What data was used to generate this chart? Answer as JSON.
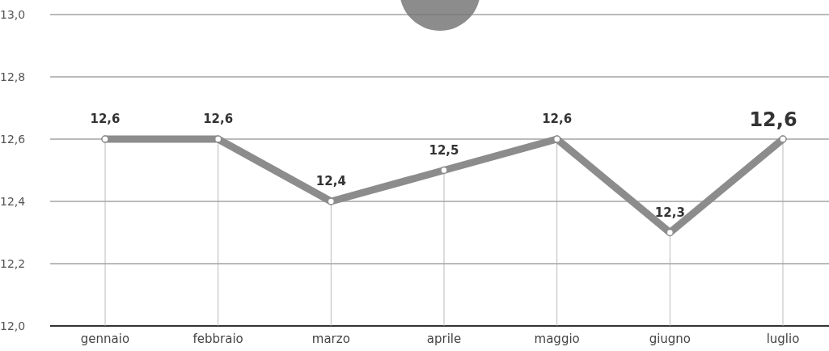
{
  "chart_data": {
    "type": "line",
    "categories": [
      "gennaio",
      "febbraio",
      "marzo",
      "aprile",
      "maggio",
      "giugno",
      "luglio"
    ],
    "series": [
      {
        "color": "#8c8c8c",
        "values": [
          12.6,
          12.6,
          12.4,
          12.5,
          12.6,
          12.3,
          12.6
        ],
        "value_labels": [
          "12,6",
          "12,6",
          "12,4",
          "12,5",
          "12,6",
          "12,3",
          "12,6"
        ]
      }
    ],
    "ylim": [
      12.0,
      13.0
    ],
    "yticks": [
      {
        "value": 12.0,
        "label": "12,0"
      },
      {
        "value": 12.2,
        "label": "12,2"
      },
      {
        "value": 12.4,
        "label": "12,4"
      },
      {
        "value": 12.6,
        "label": "12,6"
      },
      {
        "value": 12.8,
        "label": "12,8"
      },
      {
        "value": 13.0,
        "label": "13,0"
      }
    ],
    "grid": "y",
    "marker": "circle",
    "line_style": "solid"
  }
}
